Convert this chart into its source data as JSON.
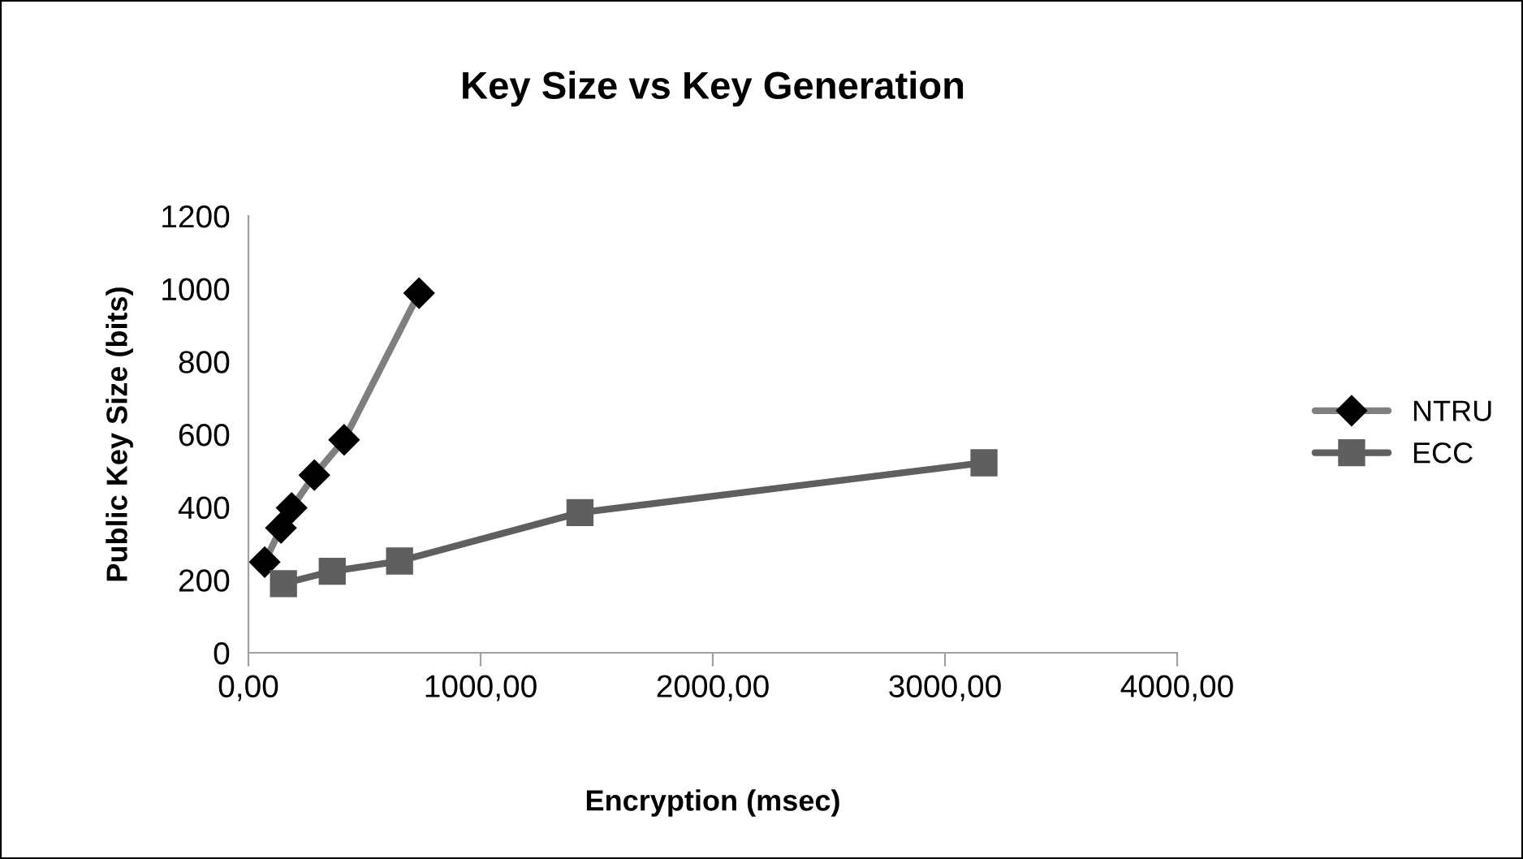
{
  "chart_data": {
    "type": "line",
    "title": "Key Size vs Key Generation",
    "xlabel": "Encryption (msec)",
    "ylabel": "Public Key Size (bits)",
    "series": [
      {
        "name": "NTRU",
        "color": "#7f7f7f",
        "marker": "diamond",
        "x": [
          70,
          140,
          186,
          284,
          412,
          735
        ],
        "values": [
          249,
          343,
          398,
          488,
          585,
          988
        ]
      },
      {
        "name": "ECC",
        "color": "#5f5f5f",
        "marker": "square",
        "x": [
          151,
          361,
          651,
          1428,
          3168
        ],
        "values": [
          190,
          224,
          252,
          385,
          522
        ]
      }
    ],
    "xlim": [
      0,
      4000
    ],
    "xticks": [
      {
        "value": 0,
        "label": "0,00"
      },
      {
        "value": 1000,
        "label": "1000,00"
      },
      {
        "value": 2000,
        "label": "2000,00"
      },
      {
        "value": 3000,
        "label": "3000,00"
      },
      {
        "value": 4000,
        "label": "4000,00"
      }
    ],
    "ylim": [
      0,
      1200
    ],
    "yticks": [
      0,
      200,
      400,
      600,
      800,
      1000,
      1200
    ],
    "grid": false,
    "legend": "right",
    "line_style": "solid"
  }
}
